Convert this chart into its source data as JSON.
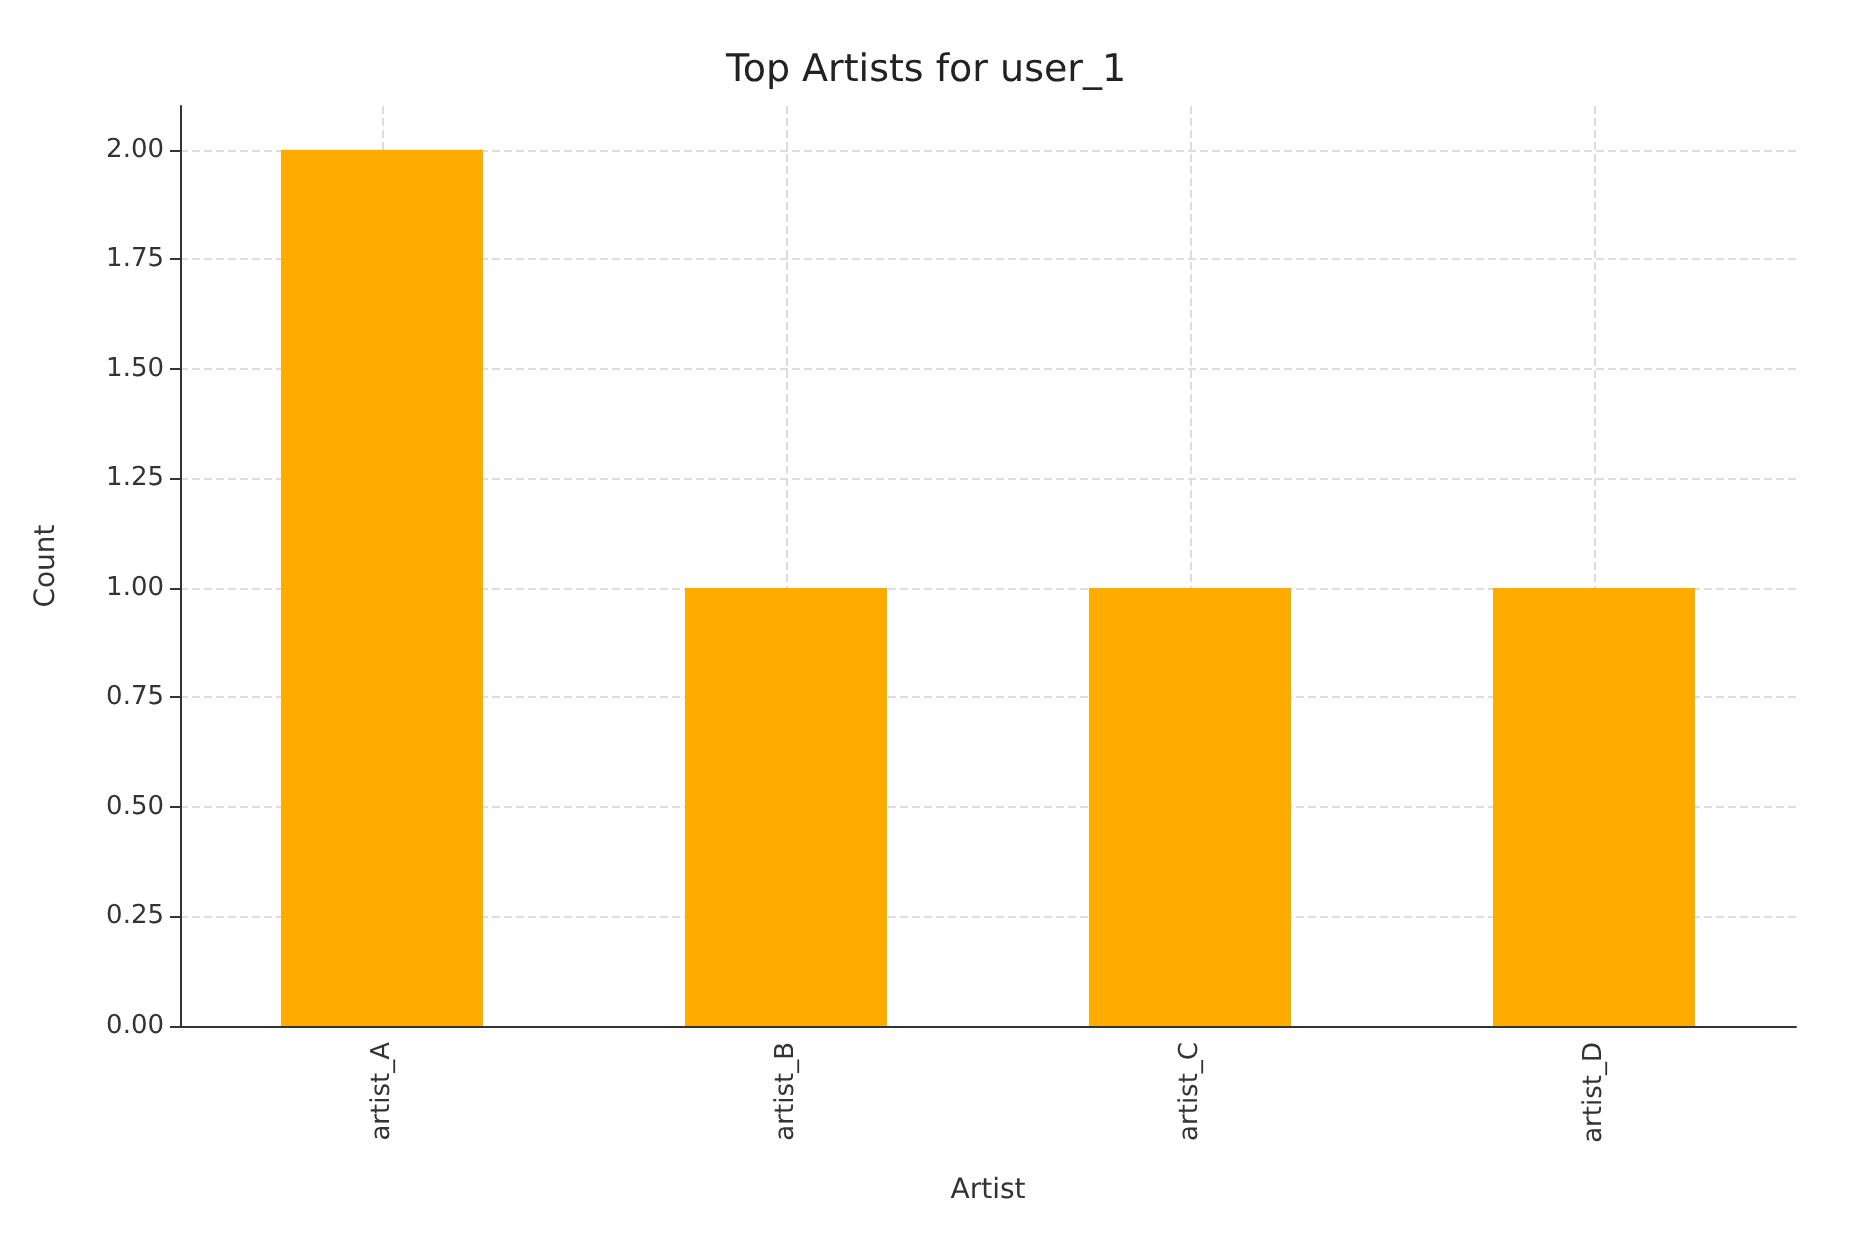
{
  "chart_data": {
    "type": "bar",
    "title": "Top Artists for user_1",
    "xlabel": "Artist",
    "ylabel": "Count",
    "categories": [
      "artist_A",
      "artist_B",
      "artist_C",
      "artist_D"
    ],
    "values": [
      2,
      1,
      1,
      1
    ],
    "color": "#ffab00",
    "ylim": [
      0,
      2.1
    ],
    "yticks": [
      {
        "value": 0,
        "label": "0.00"
      },
      {
        "value": 0.25,
        "label": "0.25"
      },
      {
        "value": 0.5,
        "label": "0.50"
      },
      {
        "value": 0.75,
        "label": "0.75"
      },
      {
        "value": 1,
        "label": "1.00"
      },
      {
        "value": 1.25,
        "label": "1.25"
      },
      {
        "value": 1.5,
        "label": "1.50"
      },
      {
        "value": 1.75,
        "label": "1.75"
      },
      {
        "value": 2,
        "label": "2.00"
      }
    ],
    "grid": true
  }
}
